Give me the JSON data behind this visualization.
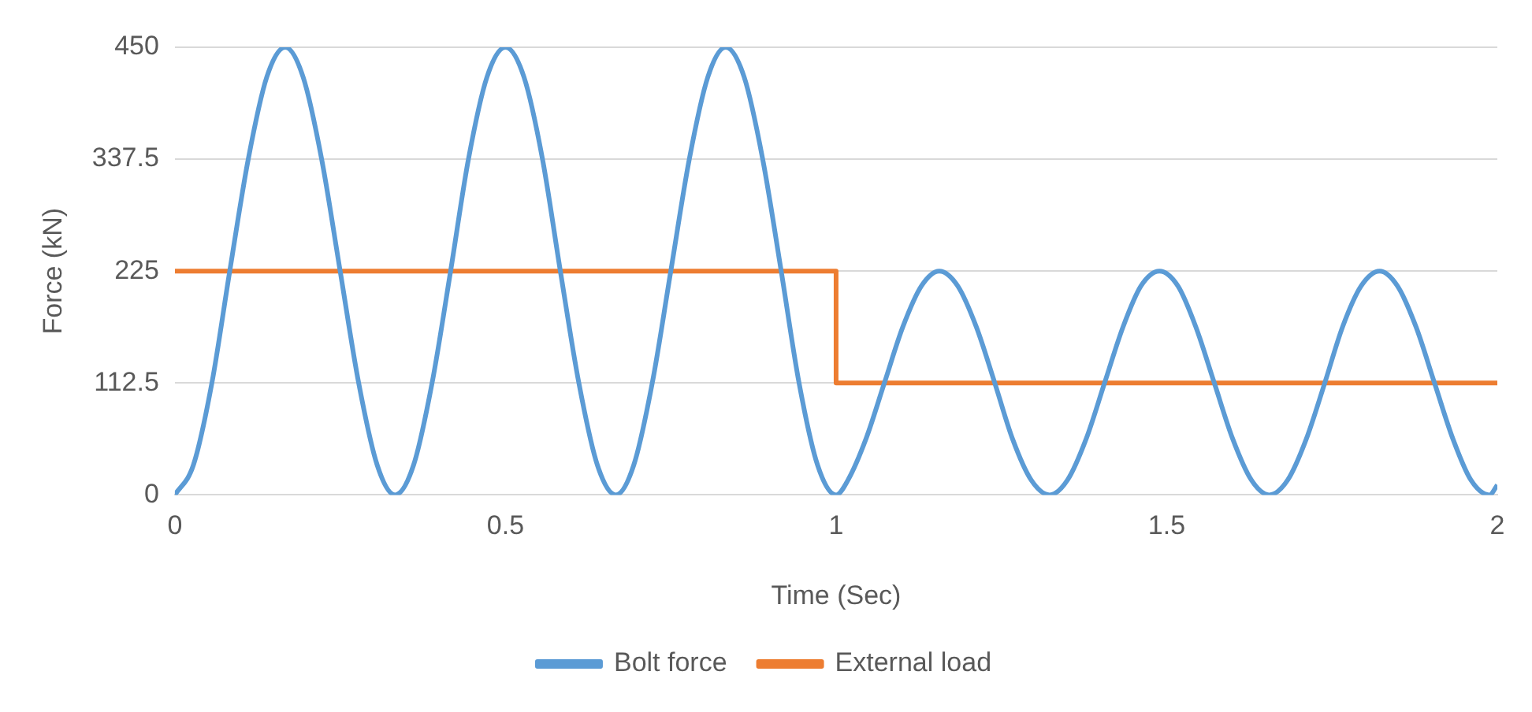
{
  "chart_data": {
    "type": "line",
    "xlabel": "Time (Sec)",
    "ylabel": "Force (kN)",
    "xlim": [
      0,
      2
    ],
    "xticks": [
      0,
      0.5,
      1,
      1.5,
      2
    ],
    "ylim": [
      0,
      450
    ],
    "yticks": [
      0,
      112.5,
      225,
      337.5,
      450
    ],
    "grid": "y",
    "legend": "bottom",
    "marker": "none",
    "line_style": "solid",
    "series": [
      {
        "name": "Bolt force",
        "color": "#5b9bd5",
        "x": [
          0,
          0.028,
          0.056,
          0.083,
          0.111,
          0.139,
          0.167,
          0.194,
          0.222,
          0.25,
          0.278,
          0.306,
          0.333,
          0.361,
          0.389,
          0.417,
          0.444,
          0.472,
          0.5,
          0.528,
          0.556,
          0.583,
          0.611,
          0.639,
          0.667,
          0.694,
          0.722,
          0.75,
          0.778,
          0.806,
          0.833,
          0.861,
          0.889,
          0.917,
          0.944,
          0.972,
          1.0,
          1.018,
          1.045,
          1.073,
          1.101,
          1.129,
          1.156,
          1.184,
          1.212,
          1.24,
          1.267,
          1.295,
          1.323,
          1.35,
          1.378,
          1.406,
          1.434,
          1.461,
          1.489,
          1.517,
          1.544,
          1.572,
          1.6,
          1.628,
          1.655,
          1.683,
          1.711,
          1.739,
          1.766,
          1.794,
          1.822,
          1.849,
          1.877,
          1.905,
          1.933,
          1.96,
          1.988,
          2.0
        ],
        "values": [
          0,
          30,
          112.5,
          225,
          337.5,
          420,
          450,
          420,
          337.5,
          225,
          112.5,
          30,
          0,
          30,
          112.5,
          225,
          337.5,
          420,
          450,
          420,
          337.5,
          225,
          112.5,
          30,
          0,
          30,
          112.5,
          225,
          337.5,
          420,
          450,
          420,
          337.5,
          225,
          112.5,
          30,
          0,
          15,
          56,
          112.5,
          169,
          210,
          225,
          210,
          169,
          112.5,
          56,
          15,
          0,
          15,
          56,
          112.5,
          169,
          210,
          225,
          210,
          169,
          112.5,
          56,
          15,
          0,
          15,
          56,
          112.5,
          169,
          210,
          225,
          210,
          169,
          112.5,
          56,
          15,
          0,
          10
        ]
      },
      {
        "name": "External load",
        "type": "step",
        "color": "#ed7d31",
        "x": [
          0,
          1,
          2
        ],
        "values": [
          225,
          112.5,
          112.5
        ]
      }
    ]
  }
}
